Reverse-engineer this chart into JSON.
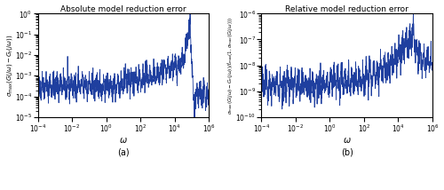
{
  "title_a": "Absolute model reduction error",
  "title_b": "Relative model reduction error",
  "xlabel": "ω",
  "label_a": "(a)",
  "label_b": "(b)",
  "xlim": [
    0.0001,
    1000000.0
  ],
  "ylim_a": [
    1e-05,
    1.0
  ],
  "ylim_b": [
    1e-10,
    1e-06
  ],
  "line_color": "#1f3f9f",
  "line_width": 0.6,
  "bg_color": "#ffffff",
  "figsize": [
    5.0,
    2.14
  ],
  "dpi": 100,
  "seed": 42,
  "n_points": 1200
}
